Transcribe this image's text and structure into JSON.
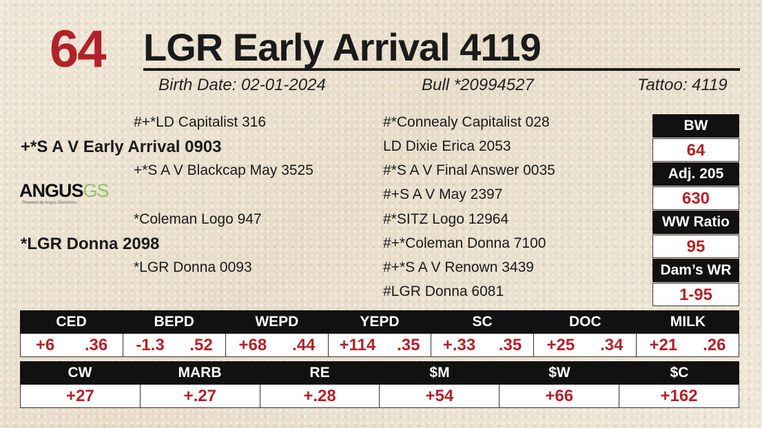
{
  "lot_number": "64",
  "animal_name": "LGR Early Arrival 4119",
  "birth_date": "Birth Date: 02-01-2024",
  "registration": "Bull *20994527",
  "tattoo": "Tattoo: 4119",
  "pedigree": {
    "sire": "+*S A V Early Arrival 0903",
    "sire_sire": "#+*LD Capitalist 316",
    "sire_dam": "+*S A V Blackcap May 3525",
    "dam": "*LGR Donna 2098",
    "dam_sire": "*Coleman Logo 947",
    "dam_dam": "*LGR Donna 0093",
    "sss": "#*Connealy Capitalist 028",
    "ssd": "LD Dixie Erica 2053",
    "sds": "#*S A V Final Answer 0035",
    "sdd": "#+S A V May 2397",
    "dss": "#*SITZ Logo 12964",
    "dsd": "#+*Coleman Donna 7100",
    "dds": "#+*S A V Renown 3439",
    "ddd": "#LGR Donna 6081"
  },
  "logo": {
    "text_main": "ANGUS",
    "text_accent": "GS",
    "tagline": "Powered by Angus Genomics"
  },
  "performance": [
    {
      "label": "BW",
      "value": "64"
    },
    {
      "label": "Adj. 205",
      "value": "630"
    },
    {
      "label": "WW Ratio",
      "value": "95"
    },
    {
      "label": "Dam’s WR",
      "value": "1-95"
    }
  ],
  "epd_row1": [
    {
      "label": "CED",
      "epd": "+6",
      "acc": ".36"
    },
    {
      "label": "BEPD",
      "epd": "-1.3",
      "acc": ".52"
    },
    {
      "label": "WEPD",
      "epd": "+68",
      "acc": ".44"
    },
    {
      "label": "YEPD",
      "epd": "+114",
      "acc": ".35"
    },
    {
      "label": "SC",
      "epd": "+.33",
      "acc": ".35"
    },
    {
      "label": "DOC",
      "epd": "+25",
      "acc": ".34"
    },
    {
      "label": "MILK",
      "epd": "+21",
      "acc": ".26"
    }
  ],
  "epd_row2": [
    {
      "label": "CW",
      "value": "+27"
    },
    {
      "label": "MARB",
      "value": "+.27"
    },
    {
      "label": "RE",
      "value": "+.28"
    },
    {
      "label": "$M",
      "value": "+54"
    },
    {
      "label": "$W",
      "value": "+66"
    },
    {
      "label": "$C",
      "value": "+162"
    }
  ],
  "colors": {
    "accent_red": "#b22229",
    "header_black": "#111111",
    "background": "#ebe1ce"
  }
}
